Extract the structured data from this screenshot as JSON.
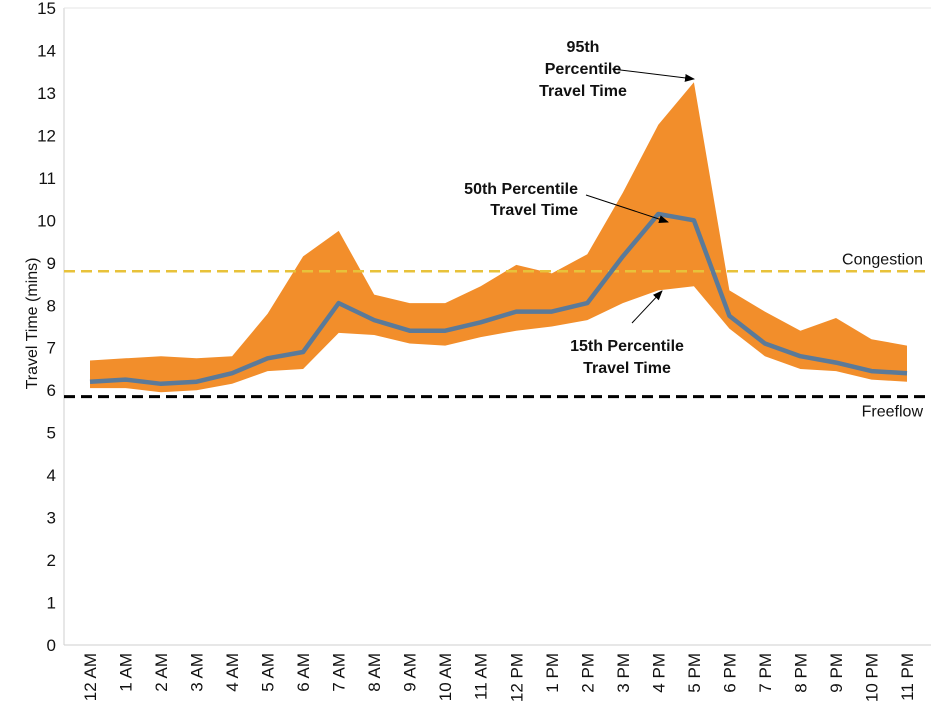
{
  "chart_data": {
    "type": "area",
    "ylabel": "Travel Time (mins)",
    "ylim": [
      0,
      15
    ],
    "yticks": [
      "0",
      "1",
      "2",
      "3",
      "4",
      "5",
      "6",
      "7",
      "8",
      "9",
      "10",
      "11",
      "12",
      "13",
      "14",
      "15"
    ],
    "categories": [
      "12 AM",
      "1 AM",
      "2 AM",
      "3 AM",
      "4 AM",
      "5 AM",
      "6 AM",
      "7 AM",
      "8 AM",
      "9 AM",
      "10 AM",
      "11 AM",
      "12 PM",
      "1 PM",
      "2 PM",
      "3 PM",
      "4 PM",
      "5 PM",
      "6 PM",
      "7 PM",
      "8 PM",
      "9 PM",
      "10 PM",
      "11 PM"
    ],
    "series": [
      {
        "name": "95th Percentile Travel Time",
        "values": [
          6.7,
          6.75,
          6.8,
          6.75,
          6.8,
          7.8,
          9.15,
          9.75,
          8.25,
          8.05,
          8.05,
          8.45,
          8.95,
          8.75,
          9.2,
          10.65,
          12.25,
          13.25,
          8.35,
          7.85,
          7.4,
          7.7,
          7.2,
          7.05
        ]
      },
      {
        "name": "50th Percentile Travel Time",
        "values": [
          6.2,
          6.25,
          6.15,
          6.2,
          6.4,
          6.75,
          6.9,
          8.05,
          7.65,
          7.4,
          7.4,
          7.6,
          7.85,
          7.85,
          8.05,
          9.15,
          10.15,
          10.0,
          7.75,
          7.1,
          6.8,
          6.65,
          6.45,
          6.4
        ]
      },
      {
        "name": "15th Percentile Travel Time",
        "values": [
          6.05,
          6.05,
          5.95,
          6.0,
          6.15,
          6.45,
          6.5,
          7.35,
          7.3,
          7.1,
          7.05,
          7.25,
          7.4,
          7.5,
          7.65,
          8.05,
          8.35,
          8.45,
          7.45,
          6.8,
          6.5,
          6.45,
          6.25,
          6.2
        ]
      }
    ],
    "reference_lines": [
      {
        "name": "Congestion",
        "value": 8.8,
        "color": "#e8c23a"
      },
      {
        "name": "Freeflow",
        "value": 5.85,
        "color": "#000000"
      }
    ],
    "annotations": [
      {
        "lines": [
          "95th",
          "Percentile",
          "Travel Time"
        ]
      },
      {
        "lines": [
          "50th Percentile",
          "Travel Time"
        ]
      },
      {
        "lines": [
          "15th Percentile",
          "Travel Time"
        ]
      }
    ],
    "colors": {
      "band": "#f28e2b",
      "median": "#5b7a99"
    }
  }
}
